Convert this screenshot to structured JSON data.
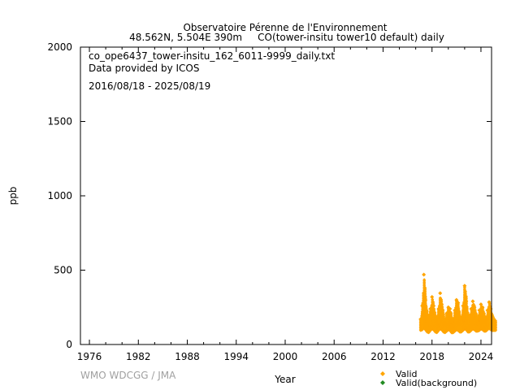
{
  "chart_data": {
    "type": "scatter",
    "title_line1": "Observatoire Pérenne de l'Environnement",
    "title_line2": "48.562N, 5.504E 390m     CO(tower-insitu tower10 default) daily",
    "annotations": [
      "co_ope6437_tower-insitu_162_6011-9999_daily.txt",
      "Data provided by ICOS",
      "2016/08/18 - 2025/08/19"
    ],
    "xlabel": "Year",
    "ylabel": "ppb",
    "xlim": [
      1974.9,
      2025.3
    ],
    "ylim": [
      0,
      2000
    ],
    "xticks": [
      1976,
      1982,
      1988,
      1994,
      2000,
      2006,
      2012,
      2018,
      2024
    ],
    "yticks": [
      0,
      500,
      1000,
      1500,
      2000
    ],
    "credit": "WMO WDCGG / JMA",
    "legend": [
      {
        "label": "Valid",
        "color": "#ffa500"
      },
      {
        "label": "Valid(background)",
        "color": "#228b22"
      }
    ],
    "legend_placement": "bottom-right",
    "series_note_fields": [
      "year",
      "min_ppb",
      "max_ppb"
    ],
    "series": [
      {
        "name": "Valid",
        "color": "#ffa500",
        "ranges": [
          [
            2016.6,
            95,
            170
          ],
          [
            2016.8,
            100,
            260
          ],
          [
            2017.0,
            110,
            470
          ],
          [
            2017.2,
            100,
            300
          ],
          [
            2017.4,
            85,
            200
          ],
          [
            2017.6,
            80,
            190
          ],
          [
            2017.8,
            95,
            240
          ],
          [
            2018.0,
            105,
            320
          ],
          [
            2018.2,
            100,
            260
          ],
          [
            2018.4,
            85,
            190
          ],
          [
            2018.6,
            80,
            180
          ],
          [
            2018.8,
            95,
            240
          ],
          [
            2019.0,
            105,
            345
          ],
          [
            2019.2,
            100,
            270
          ],
          [
            2019.4,
            85,
            200
          ],
          [
            2019.6,
            80,
            170
          ],
          [
            2019.8,
            90,
            210
          ],
          [
            2020.0,
            100,
            250
          ],
          [
            2020.2,
            95,
            240
          ],
          [
            2020.4,
            80,
            180
          ],
          [
            2020.6,
            80,
            170
          ],
          [
            2020.8,
            90,
            230
          ],
          [
            2021.0,
            100,
            300
          ],
          [
            2021.2,
            95,
            280
          ],
          [
            2021.4,
            85,
            190
          ],
          [
            2021.6,
            85,
            180
          ],
          [
            2021.8,
            95,
            260
          ],
          [
            2022.0,
            105,
            395
          ],
          [
            2022.2,
            100,
            290
          ],
          [
            2022.4,
            85,
            200
          ],
          [
            2022.6,
            85,
            190
          ],
          [
            2022.8,
            95,
            240
          ],
          [
            2023.0,
            105,
            290
          ],
          [
            2023.2,
            100,
            250
          ],
          [
            2023.4,
            90,
            200
          ],
          [
            2023.6,
            90,
            180
          ],
          [
            2023.8,
            95,
            230
          ],
          [
            2024.0,
            105,
            270
          ],
          [
            2024.2,
            100,
            250
          ],
          [
            2024.4,
            90,
            190
          ],
          [
            2024.6,
            90,
            180
          ],
          [
            2024.8,
            100,
            230
          ],
          [
            2025.0,
            110,
            285
          ],
          [
            2025.2,
            100,
            240
          ],
          [
            2025.4,
            95,
            190
          ],
          [
            2025.6,
            95,
            170
          ]
        ]
      },
      {
        "name": "Valid(background)",
        "color": "#228b22",
        "ranges": []
      }
    ]
  }
}
